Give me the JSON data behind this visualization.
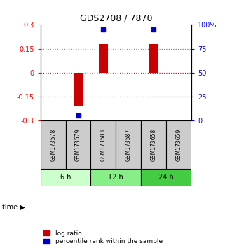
{
  "title": "GDS2708 / 7870",
  "samples": [
    "GSM173578",
    "GSM173579",
    "GSM173583",
    "GSM173587",
    "GSM173658",
    "GSM173659"
  ],
  "log_ratios": [
    0.0,
    -0.21,
    0.18,
    0.0,
    0.18,
    0.0
  ],
  "percentile_ranks": [
    null,
    5,
    95,
    null,
    95,
    null
  ],
  "time_groups": [
    {
      "label": "6 h",
      "cols": [
        0,
        1
      ],
      "color": "#ccffcc"
    },
    {
      "label": "12 h",
      "cols": [
        2,
        3
      ],
      "color": "#88ee88"
    },
    {
      "label": "24 h",
      "cols": [
        4,
        5
      ],
      "color": "#44cc44"
    }
  ],
  "ylim": [
    -0.3,
    0.3
  ],
  "yticks_left": [
    -0.3,
    -0.15,
    0,
    0.15,
    0.3
  ],
  "ytick_left_labels": [
    "-0.3",
    "-0.15",
    "0",
    "0.15",
    "0.3"
  ],
  "yticks_right_pct": [
    0,
    25,
    50,
    75,
    100
  ],
  "ytick_right_labels": [
    "0",
    "25",
    "50",
    "75",
    "100%"
  ],
  "hlines_dotted": [
    -0.15,
    0.15
  ],
  "hline_dashed_zero": 0,
  "bar_color": "#cc0000",
  "dot_color": "#0000cc",
  "background_plot": "#ffffff",
  "sample_cell_color": "#cccccc",
  "legend_labels": [
    "log ratio",
    "percentile rank within the sample"
  ],
  "time_arrow_label": "time ▶"
}
